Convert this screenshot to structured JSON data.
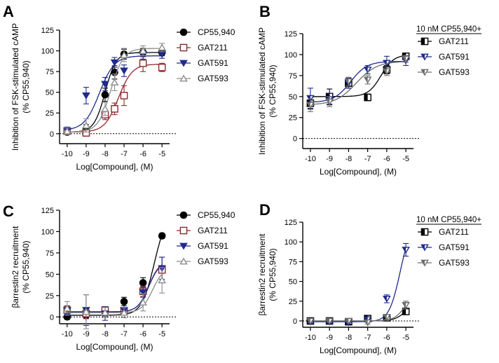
{
  "series_styles": {
    "CP55,940": {
      "color": "#000000",
      "marker": "circle",
      "fill": "#000000"
    },
    "GAT211": {
      "color": "#8b2a2a",
      "marker": "square",
      "fill": "#ffffff"
    },
    "GAT591": {
      "color": "#1f2a8c",
      "marker": "triangle-down",
      "fill": "#1f2a8c"
    },
    "GAT593": {
      "color": "#8c8c8c",
      "marker": "triangle-up",
      "fill": "#ffffff"
    },
    "GAT211_CP": {
      "color": "#000000",
      "marker": "half-square",
      "fill": "#000000"
    },
    "GAT591_CP": {
      "color": "#1f2a8c",
      "marker": "half-triangle-down",
      "fill": "#1f2a8c"
    },
    "GAT593_CP": {
      "color": "#6e6e6e",
      "marker": "half-triangle-down",
      "fill": "#6e6e6e"
    }
  },
  "chart_data": [
    {
      "panel": "A",
      "type": "scatter",
      "xlabel": "Log[Compound], (M)",
      "ylabel": [
        "Inhibition of FSK-stimulated cAMP",
        "(% CP55,940)"
      ],
      "xlim": [
        -10.4,
        -4.6
      ],
      "ylim": [
        -12,
        125
      ],
      "xticks": [
        -10,
        -9,
        -8,
        -7,
        -6,
        -5
      ],
      "yticks": [
        0,
        25,
        50,
        75,
        100,
        125
      ],
      "legend_title": "",
      "series": [
        {
          "name": "CP55,940",
          "style": "CP55,940",
          "x": [
            -10,
            -9,
            -8,
            -7.5,
            -7,
            -6,
            -5
          ],
          "y": [
            2,
            5,
            47,
            74,
            96,
            98,
            98
          ],
          "err": [
            3,
            6,
            8,
            8,
            6,
            5,
            4
          ],
          "fit": {
            "bottom": 2,
            "top": 98,
            "logec50": -8.0,
            "hill": 1.5
          }
        },
        {
          "name": "GAT211",
          "style": "GAT211",
          "x": [
            -10,
            -9,
            -8,
            -7.5,
            -7,
            -6,
            -5
          ],
          "y": [
            3,
            1,
            23,
            30,
            46,
            85,
            80
          ],
          "err": [
            3,
            4,
            6,
            7,
            12,
            10,
            5
          ],
          "fit": {
            "bottom": 2,
            "top": 84,
            "logec50": -7.3,
            "hill": 1.2
          }
        },
        {
          "name": "GAT591",
          "style": "GAT591",
          "x": [
            -10,
            -9,
            -8,
            -7.5,
            -7,
            -6,
            -5
          ],
          "y": [
            4,
            46,
            60,
            86,
            76,
            96,
            96
          ],
          "err": [
            4,
            10,
            8,
            6,
            7,
            6,
            5
          ],
          "fit": {
            "bottom": 4,
            "top": 94,
            "logec50": -8.3,
            "hill": 1.1
          }
        },
        {
          "name": "GAT593",
          "style": "GAT593",
          "x": [
            -10,
            -9,
            -8,
            -7.5,
            -7,
            -6,
            -5
          ],
          "y": [
            3,
            10,
            30,
            62,
            95,
            100,
            104
          ],
          "err": [
            4,
            8,
            8,
            10,
            8,
            6,
            5
          ],
          "fit": {
            "bottom": 2,
            "top": 103,
            "logec50": -7.7,
            "hill": 1.3
          }
        }
      ]
    },
    {
      "panel": "B",
      "type": "scatter",
      "xlabel": "Log[Compound], (M)",
      "ylabel": [
        "Inhibition of FSK-stimulated cAMP",
        "(% CP55,940)"
      ],
      "xlim": [
        -10.4,
        -4.6
      ],
      "ylim": [
        -12,
        125
      ],
      "xticks": [
        -10,
        -9,
        -8,
        -7,
        -6,
        -5
      ],
      "yticks": [
        0,
        25,
        50,
        75,
        100,
        125
      ],
      "legend_title": "10 nM CP55,940+",
      "series": [
        {
          "name": "GAT211",
          "style": "GAT211_CP",
          "x": [
            -10,
            -9,
            -8,
            -7,
            -6,
            -5
          ],
          "y": [
            42,
            50,
            66,
            49,
            82,
            98
          ],
          "err": [
            7,
            9,
            6,
            4,
            5,
            4
          ],
          "fit": {
            "bottom": 50,
            "top": 100,
            "logec50": -6.3,
            "hill": 1.3
          }
        },
        {
          "name": "GAT591",
          "style": "GAT591_CP",
          "x": [
            -10,
            -9,
            -8,
            -7,
            -6,
            -5
          ],
          "y": [
            48,
            47,
            66,
            82,
            90,
            93
          ],
          "err": [
            12,
            7,
            6,
            5,
            8,
            6
          ],
          "fit": {
            "bottom": 43,
            "top": 92,
            "logec50": -7.9,
            "hill": 1.0
          }
        },
        {
          "name": "GAT593",
          "style": "GAT593_CP",
          "x": [
            -10,
            -9,
            -8,
            -7,
            -6,
            -5
          ],
          "y": [
            40,
            44,
            68,
            70,
            80,
            95
          ],
          "err": [
            8,
            6,
            5,
            5,
            5,
            4
          ],
          "fit": {
            "bottom": 40,
            "top": 92,
            "logec50": -7.6,
            "hill": 0.8
          }
        }
      ]
    },
    {
      "panel": "C",
      "type": "scatter",
      "xlabel": "Log[Compound], (M)",
      "ylabel": [
        "βarrestin2 recruitment",
        "(% CP55,940)"
      ],
      "xlim": [
        -10.4,
        -4.6
      ],
      "ylim": [
        -8,
        125
      ],
      "xticks": [
        -10,
        -9,
        -8,
        -7,
        -6,
        -5
      ],
      "yticks": [
        0,
        25,
        50,
        75,
        100,
        125
      ],
      "legend_title": "",
      "series": [
        {
          "name": "CP55,940",
          "style": "CP55,940",
          "x": [
            -10,
            -9,
            -8,
            -7,
            -6,
            -5
          ],
          "y": [
            0,
            2,
            5,
            18,
            40,
            95
          ],
          "err": [
            3,
            4,
            4,
            5,
            6,
            3
          ],
          "fit": {
            "bottom": 2,
            "top": 125,
            "logec50": -5.4,
            "hill": 1.3
          }
        },
        {
          "name": "GAT211",
          "style": "GAT211",
          "x": [
            -10,
            -9,
            -8,
            -7,
            -6,
            -5
          ],
          "y": [
            8,
            4,
            8,
            7,
            30,
            55
          ],
          "err": [
            5,
            6,
            4,
            4,
            6,
            15
          ],
          "fit": {
            "bottom": 6,
            "top": 65,
            "logec50": -5.7,
            "hill": 1.5
          }
        },
        {
          "name": "GAT591",
          "style": "GAT591",
          "x": [
            -10,
            -9,
            -8,
            -7,
            -6,
            -5
          ],
          "y": [
            8,
            8,
            4,
            8,
            29,
            57
          ],
          "err": [
            5,
            18,
            8,
            5,
            6,
            13
          ],
          "fit": {
            "bottom": 6,
            "top": 66,
            "logec50": -5.7,
            "hill": 1.5
          }
        },
        {
          "name": "GAT593",
          "style": "GAT593",
          "x": [
            -10,
            -9,
            -8,
            -7,
            -6,
            -5
          ],
          "y": [
            10,
            6,
            5,
            5,
            17,
            43
          ],
          "err": [
            8,
            20,
            6,
            6,
            10,
            15
          ],
          "fit": {
            "bottom": 5,
            "top": 58,
            "logec50": -5.5,
            "hill": 1.5
          }
        }
      ]
    },
    {
      "panel": "D",
      "type": "scatter",
      "xlabel": "Log[Compound], (M)",
      "ylabel": [
        "βarrestin2 recruitment",
        "(% CP55,940)"
      ],
      "xlim": [
        -10.4,
        -4.6
      ],
      "ylim": [
        -8,
        125
      ],
      "xticks": [
        -10,
        -9,
        -8,
        -7,
        -6,
        -5
      ],
      "yticks": [
        0,
        25,
        50,
        75,
        100,
        125
      ],
      "legend_title": "10 nM CP55,940+",
      "series": [
        {
          "name": "GAT211",
          "style": "GAT211_CP",
          "x": [
            -10,
            -9,
            -8,
            -7,
            -6,
            -5
          ],
          "y": [
            0,
            0,
            -1,
            3,
            4,
            12
          ],
          "err": [
            2,
            2,
            2,
            2,
            3,
            4
          ],
          "fit": {
            "bottom": 0,
            "top": 25,
            "logec50": -5.0,
            "hill": 1.5
          }
        },
        {
          "name": "GAT591",
          "style": "GAT591_CP",
          "x": [
            -10,
            -9,
            -8,
            -7,
            -6,
            -5
          ],
          "y": [
            -1,
            -1,
            -2,
            2,
            28,
            90
          ],
          "err": [
            2,
            2,
            2,
            3,
            5,
            8
          ],
          "fit": {
            "bottom": -1,
            "top": 125,
            "logec50": -5.3,
            "hill": 1.5
          }
        },
        {
          "name": "GAT593",
          "style": "GAT593_CP",
          "x": [
            -10,
            -9,
            -8,
            -7,
            -6,
            -5
          ],
          "y": [
            0,
            0,
            0,
            -2,
            5,
            20
          ],
          "err": [
            2,
            2,
            2,
            2,
            3,
            5
          ],
          "fit": {
            "bottom": 0,
            "top": 40,
            "logec50": -5.0,
            "hill": 1.5
          }
        }
      ]
    }
  ]
}
